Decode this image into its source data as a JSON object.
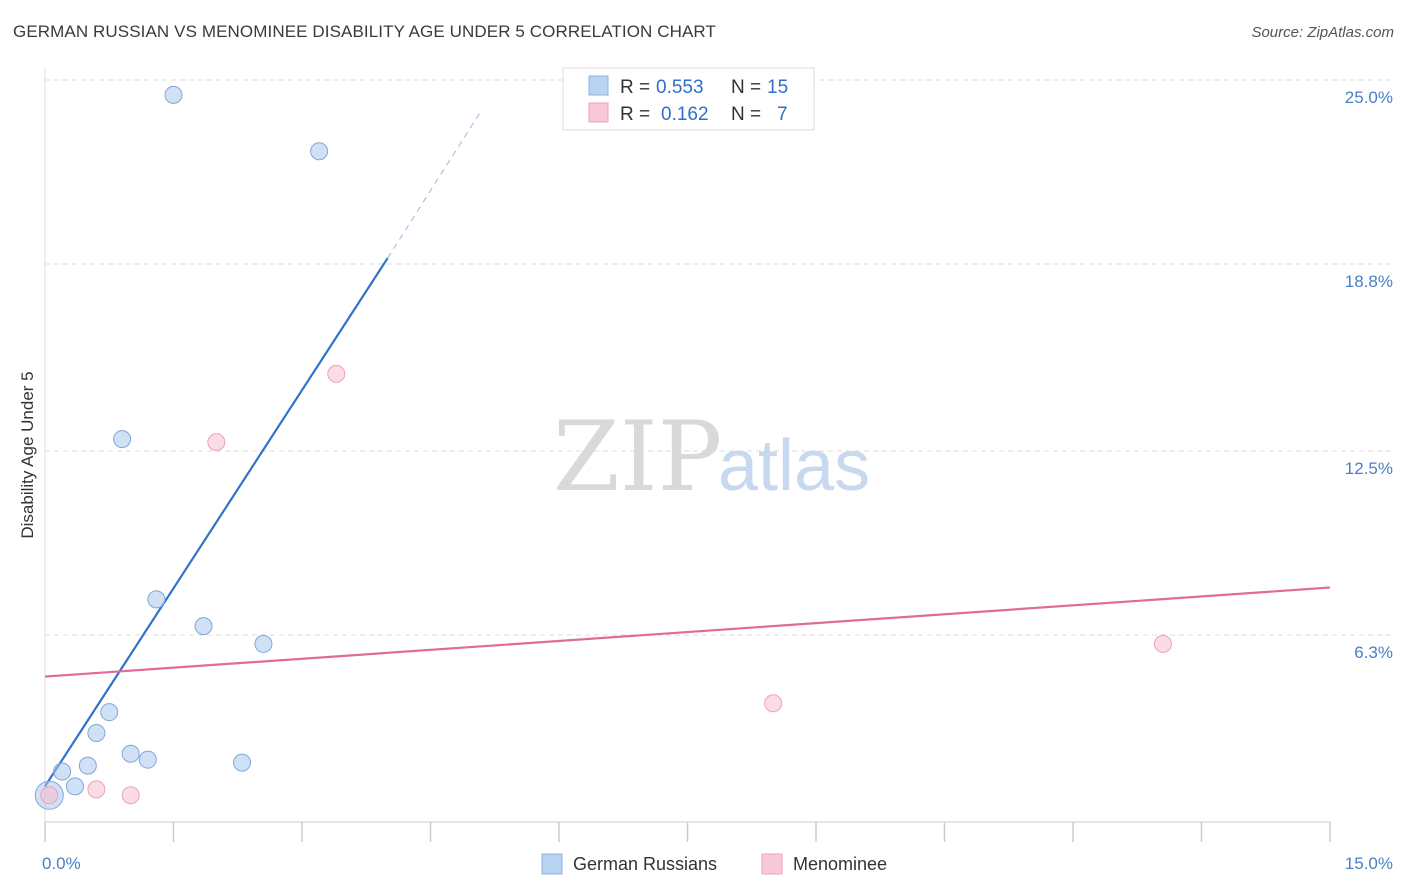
{
  "header": {
    "title": "GERMAN RUSSIAN VS MENOMINEE DISABILITY AGE UNDER 5 CORRELATION CHART",
    "source": "Source: ZipAtlas.com"
  },
  "watermark": {
    "zip": "ZIP",
    "atlas": "atlas"
  },
  "chart_data": {
    "type": "scatter",
    "title": "GERMAN RUSSIAN VS MENOMINEE DISABILITY AGE UNDER 5 CORRELATION CHART",
    "xlabel": "",
    "ylabel": "Disability Age Under 5",
    "xlim": [
      0,
      15
    ],
    "ylim": [
      0,
      25.0
    ],
    "x_tick_labels": [
      {
        "value": 0,
        "label": "0.0%"
      },
      {
        "value": 15,
        "label": "15.0%"
      }
    ],
    "y_tick_labels": [
      {
        "value": 6.3,
        "label": "6.3%"
      },
      {
        "value": 12.5,
        "label": "12.5%"
      },
      {
        "value": 18.8,
        "label": "18.8%"
      },
      {
        "value": 25.0,
        "label": "25.0%"
      }
    ],
    "grid": true,
    "series": [
      {
        "name": "German Russians",
        "color": "#a9c8ef",
        "line_color": "#2f74c8",
        "R": "0.553",
        "N": "15",
        "points": [
          {
            "x": 0.05,
            "y": 0.9,
            "big": true
          },
          {
            "x": 0.2,
            "y": 1.7
          },
          {
            "x": 0.35,
            "y": 1.2
          },
          {
            "x": 0.5,
            "y": 1.9
          },
          {
            "x": 0.6,
            "y": 3.0
          },
          {
            "x": 0.75,
            "y": 3.7
          },
          {
            "x": 1.0,
            "y": 2.3
          },
          {
            "x": 1.2,
            "y": 2.1
          },
          {
            "x": 0.9,
            "y": 12.9
          },
          {
            "x": 1.3,
            "y": 7.5
          },
          {
            "x": 1.85,
            "y": 6.6
          },
          {
            "x": 2.3,
            "y": 2.0
          },
          {
            "x": 2.55,
            "y": 6.0
          },
          {
            "x": 1.5,
            "y": 24.5
          },
          {
            "x": 3.2,
            "y": 22.6
          }
        ],
        "trendline": {
          "x0": 0.0,
          "y0": 1.2,
          "x1": 4.0,
          "y1": 19.0,
          "dash_to_x": 5.1,
          "dash_to_y": 24.0
        }
      },
      {
        "name": "Menominee",
        "color": "#f7bfd0",
        "line_color": "#e06c95",
        "R": "0.162",
        "N": "7",
        "points": [
          {
            "x": 0.05,
            "y": 0.9
          },
          {
            "x": 0.6,
            "y": 1.1
          },
          {
            "x": 1.0,
            "y": 0.9
          },
          {
            "x": 2.0,
            "y": 12.8
          },
          {
            "x": 3.4,
            "y": 15.1
          },
          {
            "x": 8.5,
            "y": 4.0
          },
          {
            "x": 13.05,
            "y": 6.0
          }
        ],
        "trendline": {
          "x0": 0.0,
          "y0": 4.9,
          "x1": 15.0,
          "y1": 7.9
        }
      }
    ]
  },
  "legend": {
    "r_label": "R =",
    "n_label": "N ="
  }
}
